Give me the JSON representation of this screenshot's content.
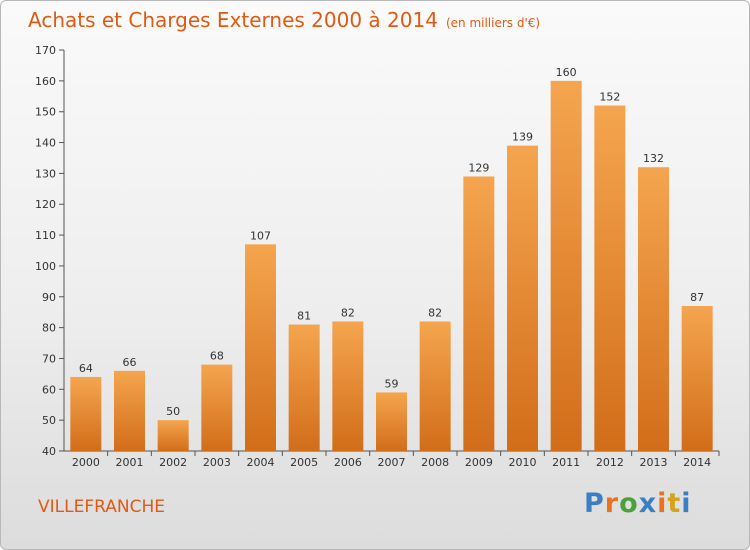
{
  "header": {
    "title": "Achats et Charges Externes 2000 à 2014",
    "subtitle": "(en milliers d'€)"
  },
  "commune": "VILLEFRANCHE",
  "logo": {
    "letters": [
      "P",
      "r",
      "o",
      "x",
      "i",
      "t",
      "i"
    ],
    "colors": [
      "#3a7fc4",
      "#e8731c",
      "#4aa23a",
      "#3a7fc4",
      "#e8731c",
      "#d6a21a",
      "#3a7fc4"
    ]
  },
  "colors": {
    "accent": "#e05a12",
    "bar_top": "#f5a54f",
    "bar_bottom": "#d26d1a"
  },
  "chart_data": {
    "type": "bar",
    "title": "Achats et Charges Externes 2000 à 2014",
    "subtitle": "(en milliers d'€)",
    "categories": [
      "2000",
      "2001",
      "2002",
      "2003",
      "2004",
      "2005",
      "2006",
      "2007",
      "2008",
      "2009",
      "2010",
      "2011",
      "2012",
      "2013",
      "2014"
    ],
    "values": [
      64,
      66,
      50,
      68,
      107,
      81,
      82,
      59,
      82,
      129,
      139,
      160,
      152,
      132,
      87
    ],
    "ylim": [
      40,
      170
    ],
    "yticks": [
      40,
      50,
      60,
      70,
      80,
      90,
      100,
      110,
      120,
      130,
      140,
      150,
      160,
      170
    ],
    "grid": false,
    "xlabel": "",
    "ylabel": ""
  }
}
